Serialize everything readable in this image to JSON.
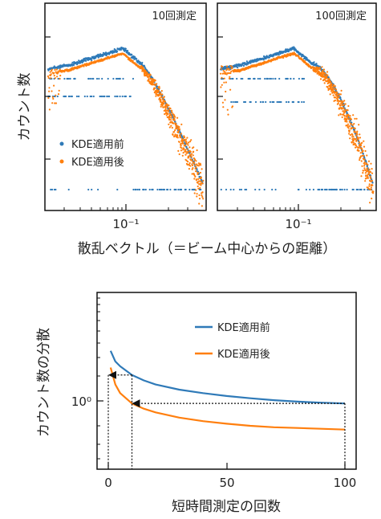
{
  "colors": {
    "before": "#2f7ab8",
    "after": "#ff7f0e",
    "axis": "#111111"
  },
  "chart_data": [
    {
      "type": "scatter",
      "panel_label": "10回測定",
      "xscale": "log",
      "x_ticks": [
        {
          "value": 0.1,
          "label": "10⁻¹"
        }
      ],
      "ylabel": "カウント数",
      "xlabel_shared": "散乱ベクトル（＝ビーム中心からの距離）",
      "legend": {
        "placement": "lower-left",
        "entries": [
          "KDE適用前",
          "KDE適用後"
        ]
      },
      "series": [
        {
          "name": "KDE適用前",
          "color": "#2f7ab8"
        },
        {
          "name": "KDE適用後",
          "color": "#ff7f0e"
        }
      ]
    },
    {
      "type": "scatter",
      "panel_label": "100回測定",
      "xscale": "log",
      "x_ticks": [
        {
          "value": 0.1,
          "label": "10⁻¹"
        }
      ],
      "series": [
        {
          "name": "KDE適用前",
          "color": "#2f7ab8"
        },
        {
          "name": "KDE適用後",
          "color": "#ff7f0e"
        }
      ]
    },
    {
      "type": "line",
      "xlabel": "短時間測定の回数",
      "ylabel": "カウント数の分散",
      "yscale": "log",
      "xlim": [
        0,
        100
      ],
      "x_ticks": [
        0,
        50,
        100
      ],
      "y_ticks": [
        {
          "value": 1,
          "label": "10⁰"
        }
      ],
      "legend": {
        "placement": "upper-right"
      },
      "x": [
        1,
        3,
        5,
        10,
        15,
        20,
        30,
        40,
        50,
        60,
        70,
        80,
        90,
        100
      ],
      "series": [
        {
          "name": "KDE適用前",
          "color": "#2f7ab8",
          "values": [
            4.2,
            3.1,
            2.7,
            2.1,
            1.8,
            1.6,
            1.38,
            1.25,
            1.15,
            1.08,
            1.02,
            0.98,
            0.95,
            0.93
          ]
        },
        {
          "name": "KDE適用後",
          "color": "#ff7f0e",
          "values": [
            2.6,
            1.6,
            1.25,
            0.93,
            0.8,
            0.72,
            0.62,
            0.56,
            0.52,
            0.49,
            0.47,
            0.46,
            0.45,
            0.44
          ]
        }
      ],
      "annotations": [
        {
          "type": "arrow",
          "from_x": 10,
          "to_x": 0,
          "y": 2.1
        },
        {
          "type": "arrow",
          "from_x": 100,
          "to_x": 10,
          "y": 0.93
        }
      ]
    }
  ]
}
